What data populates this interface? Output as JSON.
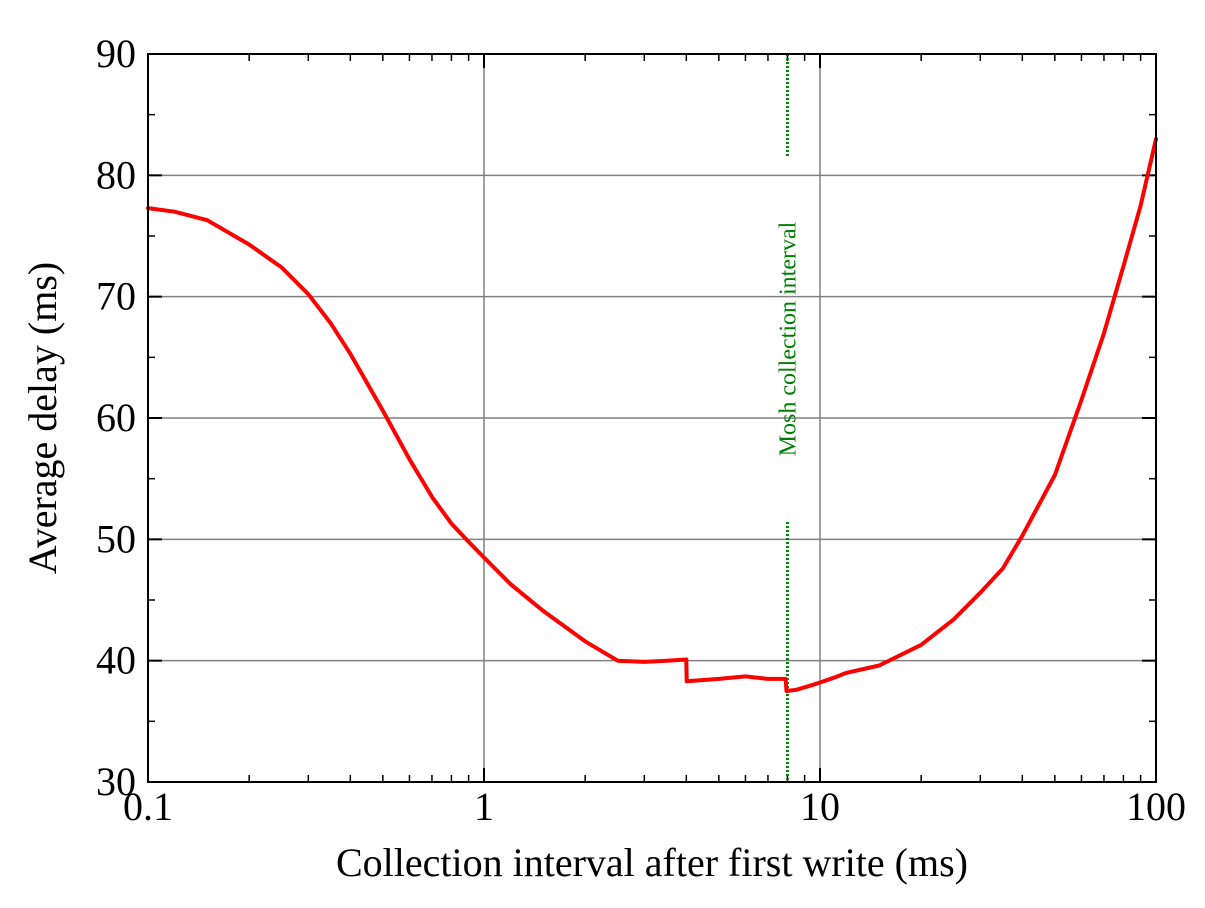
{
  "chart_data": {
    "type": "line",
    "title": "",
    "xlabel": "Collection interval after first write (ms)",
    "ylabel": "Average delay (ms)",
    "xscale": "log",
    "xlim": [
      0.1,
      100
    ],
    "ylim": [
      30,
      90
    ],
    "x_ticks": [
      0.1,
      1,
      10,
      100
    ],
    "x_tick_labels": [
      "0.1",
      "1",
      "10",
      "100"
    ],
    "y_ticks": [
      30,
      40,
      50,
      60,
      70,
      80,
      90
    ],
    "y_tick_labels": [
      "30",
      "40",
      "50",
      "60",
      "70",
      "80",
      "90"
    ],
    "grid": true,
    "series_color": "#ff0000",
    "series": [
      {
        "name": "",
        "x": [
          0.1,
          0.12,
          0.15,
          0.2,
          0.25,
          0.3,
          0.35,
          0.4,
          0.5,
          0.6,
          0.7,
          0.8,
          0.9,
          1.0,
          1.2,
          1.5,
          2.0,
          2.5,
          3.0,
          3.5,
          4.0,
          4.01,
          5.0,
          6.0,
          7.0,
          7.9,
          7.95,
          8.5,
          9.5,
          10.0,
          11.0,
          12.0,
          15.0,
          20.0,
          25.0,
          30.0,
          35.0,
          40.0,
          50.0,
          60.0,
          70.0,
          80.0,
          90.0,
          100.0
        ],
        "y": [
          77.3,
          77.0,
          76.3,
          74.3,
          72.4,
          70.2,
          67.8,
          65.3,
          60.6,
          56.6,
          53.5,
          51.3,
          49.8,
          48.5,
          46.3,
          44.1,
          41.6,
          40.0,
          39.9,
          40.0,
          40.1,
          38.3,
          38.5,
          38.7,
          38.5,
          38.5,
          37.5,
          37.6,
          38.0,
          38.2,
          38.6,
          39.0,
          39.6,
          41.3,
          43.4,
          45.6,
          47.6,
          50.3,
          55.3,
          61.5,
          67.0,
          72.5,
          77.5,
          83.0
        ]
      }
    ],
    "annotations": [
      {
        "text": "Mosh collection interval",
        "x": 8,
        "style": "vertical dotted line",
        "color": "#008000"
      }
    ]
  }
}
